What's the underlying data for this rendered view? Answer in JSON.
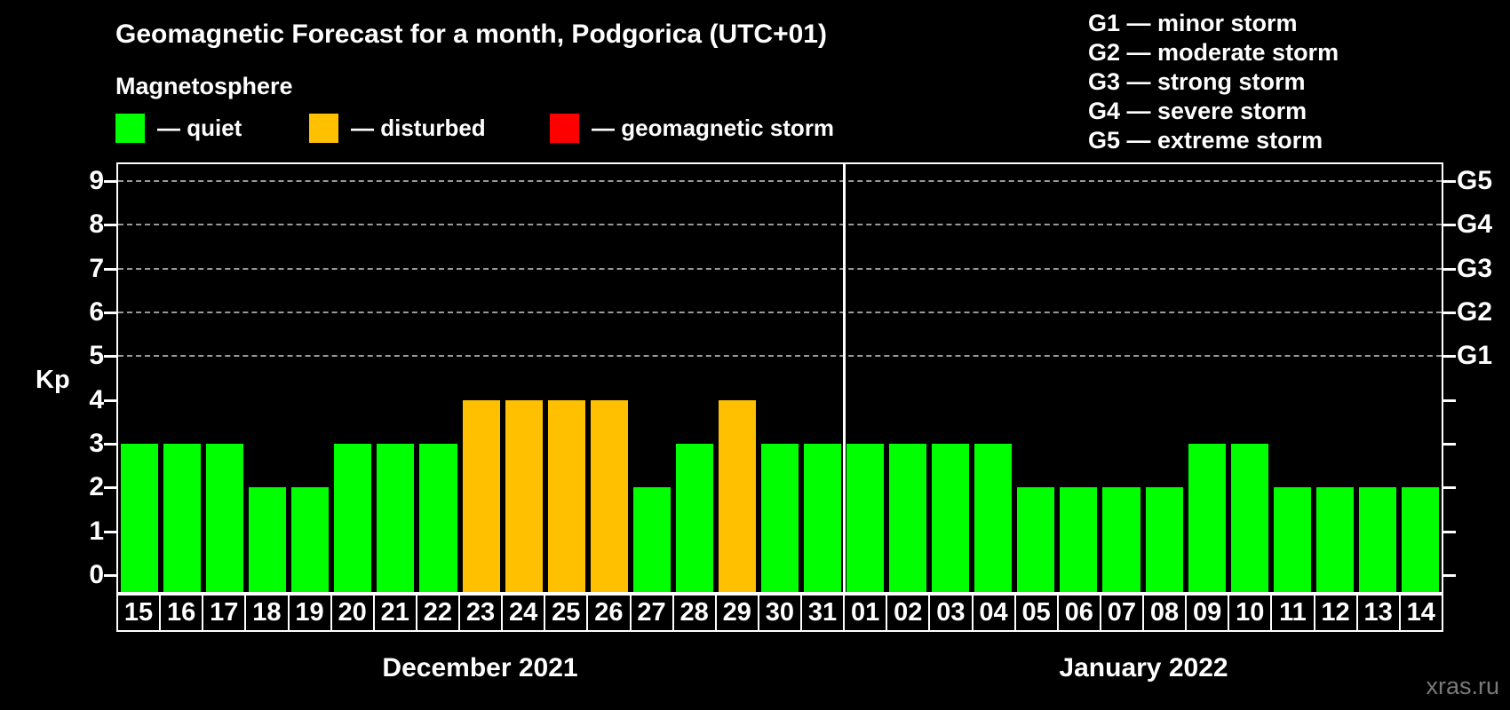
{
  "header": {
    "title": "Geomagnetic Forecast for a month, Podgorica (UTC+01)",
    "subtitle": "Magnetosphere"
  },
  "legend": {
    "items": [
      {
        "name": "quiet",
        "label": "— quiet",
        "color": "#00ff00"
      },
      {
        "name": "disturbed",
        "label": "— disturbed",
        "color": "#ffc000"
      },
      {
        "name": "storm",
        "label": "— geomagnetic storm",
        "color": "#ff0000"
      }
    ]
  },
  "g_storm_legend": [
    "G1 — minor storm",
    "G2 — moderate storm",
    "G3 — strong storm",
    "G4 — severe storm",
    "G5 — extreme storm"
  ],
  "watermark": "xras.ru",
  "chart_data": {
    "type": "bar",
    "title": "Geomagnetic Forecast for a month, Podgorica (UTC+01)",
    "ylabel": "Kp",
    "ylim": [
      0,
      9
    ],
    "yticks": [
      0,
      1,
      2,
      3,
      4,
      5,
      6,
      7,
      8,
      9
    ],
    "gridlines_at_kp": [
      5,
      6,
      7,
      8,
      9
    ],
    "grid_on": true,
    "right_axis_labels": [
      {
        "kp": 5,
        "label": "G1"
      },
      {
        "kp": 6,
        "label": "G2"
      },
      {
        "kp": 7,
        "label": "G3"
      },
      {
        "kp": 8,
        "label": "G4"
      },
      {
        "kp": 9,
        "label": "G5"
      }
    ],
    "color_rule": {
      "quiet_kp_max": 3,
      "disturbed_kp": 4,
      "storm_kp_min": 5
    },
    "colors": {
      "quiet": "#00ff00",
      "disturbed": "#ffc000",
      "storm": "#ff0000"
    },
    "months": [
      {
        "name": "December 2021",
        "days": [
          "15",
          "16",
          "17",
          "18",
          "19",
          "20",
          "21",
          "22",
          "23",
          "24",
          "25",
          "26",
          "27",
          "28",
          "29",
          "30",
          "31"
        ],
        "kp": [
          3,
          3,
          3,
          2,
          2,
          3,
          3,
          3,
          4,
          4,
          4,
          4,
          2,
          3,
          4,
          3,
          3
        ]
      },
      {
        "name": "January 2022",
        "days": [
          "01",
          "02",
          "03",
          "04",
          "05",
          "06",
          "07",
          "08",
          "09",
          "10",
          "11",
          "12",
          "13",
          "14"
        ],
        "kp": [
          3,
          3,
          3,
          3,
          2,
          2,
          2,
          2,
          3,
          3,
          2,
          2,
          2,
          2
        ]
      }
    ]
  }
}
